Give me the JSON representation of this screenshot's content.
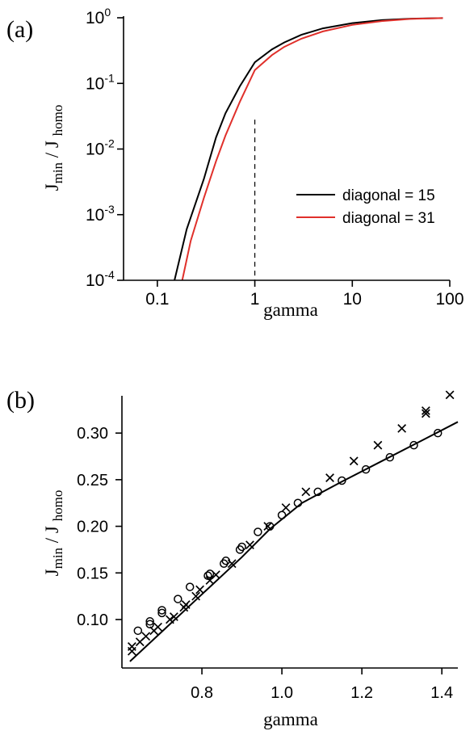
{
  "colors": {
    "black": "#000000",
    "red": "#e0302b"
  },
  "panel_a": {
    "label": "(a)"
  },
  "panel_b": {
    "label": "(b)"
  },
  "chart_data": [
    {
      "type": "line",
      "panel": "(a)",
      "xlabel": "gamma",
      "ylabel_main": "J",
      "ylabel_sub1": "min",
      "ylabel_mid": " / J ",
      "ylabel_sub2": "homo",
      "xscale": "log",
      "yscale": "log",
      "xlim": [
        0.045,
        100
      ],
      "ylim": [
        0.0001,
        1
      ],
      "xticks": [
        {
          "value": 0.1,
          "label": "0.1"
        },
        {
          "value": 1,
          "label": "1"
        },
        {
          "value": 10,
          "label": "10"
        },
        {
          "value": 100,
          "label": "100"
        }
      ],
      "yticks": [
        {
          "value": 1,
          "base": "10",
          "exp": "0"
        },
        {
          "value": 0.1,
          "base": "10",
          "exp": "-1"
        },
        {
          "value": 0.01,
          "base": "10",
          "exp": "-2"
        },
        {
          "value": 0.001,
          "base": "10",
          "exp": "-3"
        },
        {
          "value": 0.0001,
          "base": "10",
          "exp": "-4"
        }
      ],
      "reference_line": {
        "x": 1,
        "style": "dashed",
        "y_range": [
          0.0001,
          0.028
        ]
      },
      "legend_position": "right",
      "series": [
        {
          "name": "diagonal = 15",
          "color": "#000000",
          "x": [
            0.15,
            0.2,
            0.3,
            0.4,
            0.5,
            0.7,
            1.0,
            1.5,
            2,
            3,
            5,
            10,
            20,
            40,
            85
          ],
          "y": [
            0.0001,
            0.0006,
            0.0035,
            0.015,
            0.035,
            0.09,
            0.21,
            0.33,
            0.42,
            0.55,
            0.69,
            0.83,
            0.92,
            0.97,
            0.99
          ]
        },
        {
          "name": "diagonal = 31",
          "color": "#e0302b",
          "x": [
            0.18,
            0.22,
            0.3,
            0.4,
            0.5,
            0.7,
            1.0,
            1.5,
            2,
            3,
            5,
            10,
            20,
            40,
            85
          ],
          "y": [
            0.0001,
            0.0004,
            0.0018,
            0.0065,
            0.016,
            0.052,
            0.16,
            0.27,
            0.36,
            0.48,
            0.62,
            0.78,
            0.89,
            0.96,
            0.99
          ]
        }
      ]
    },
    {
      "type": "scatter",
      "panel": "(b)",
      "xlabel": "gamma",
      "ylabel_main": "J",
      "ylabel_sub1": "min",
      "ylabel_mid": " / J ",
      "ylabel_sub2": "homo",
      "xlim": [
        0.6,
        1.44
      ],
      "ylim": [
        0.048,
        0.34
      ],
      "xticks": [
        {
          "value": 0.8,
          "label": "0.8"
        },
        {
          "value": 1.0,
          "label": "1.0"
        },
        {
          "value": 1.2,
          "label": "1.2"
        },
        {
          "value": 1.4,
          "label": "1.4"
        }
      ],
      "yticks": [
        {
          "value": 0.1,
          "label": "0.10"
        },
        {
          "value": 0.15,
          "label": "0.15"
        },
        {
          "value": 0.2,
          "label": "0.20"
        },
        {
          "value": 0.25,
          "label": "0.25"
        },
        {
          "value": 0.3,
          "label": "0.30"
        }
      ],
      "fit_line": {
        "x": [
          0.62,
          0.7,
          0.8,
          0.9,
          0.97,
          1.05,
          1.15,
          1.25,
          1.35,
          1.44
        ],
        "y": [
          0.055,
          0.087,
          0.127,
          0.167,
          0.197,
          0.225,
          0.248,
          0.27,
          0.292,
          0.312
        ]
      },
      "series": [
        {
          "marker": "circle",
          "x": [
            0.64,
            0.67,
            0.67,
            0.7,
            0.7,
            0.74,
            0.77,
            0.815,
            0.82,
            0.855,
            0.86,
            0.895,
            0.9,
            0.94,
            0.97,
            1.0,
            1.04,
            1.09,
            1.15,
            1.21,
            1.27,
            1.33,
            1.39
          ],
          "y": [
            0.088,
            0.095,
            0.098,
            0.107,
            0.11,
            0.122,
            0.135,
            0.147,
            0.149,
            0.16,
            0.163,
            0.175,
            0.178,
            0.194,
            0.2,
            0.212,
            0.225,
            0.237,
            0.249,
            0.261,
            0.274,
            0.287,
            0.3
          ]
        },
        {
          "marker": "cross",
          "x": [
            0.625,
            0.625,
            0.645,
            0.66,
            0.68,
            0.69,
            0.72,
            0.73,
            0.755,
            0.76,
            0.785,
            0.795,
            0.82,
            0.835,
            0.875,
            0.92,
            0.965,
            1.01,
            1.06,
            1.12,
            1.18,
            1.24,
            1.3,
            1.36,
            1.36,
            1.42
          ],
          "y": [
            0.066,
            0.071,
            0.076,
            0.082,
            0.088,
            0.092,
            0.1,
            0.103,
            0.113,
            0.116,
            0.125,
            0.132,
            0.142,
            0.148,
            0.16,
            0.18,
            0.2,
            0.22,
            0.237,
            0.252,
            0.27,
            0.287,
            0.305,
            0.321,
            0.324,
            0.341
          ]
        }
      ]
    }
  ]
}
